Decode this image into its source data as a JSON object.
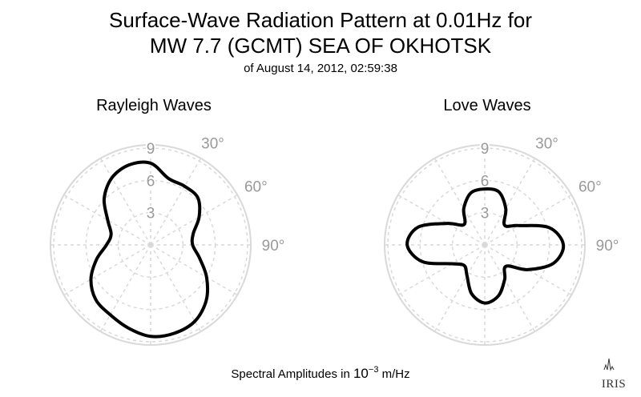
{
  "title_line1": "Surface-Wave Radiation Pattern at 0.01Hz for",
  "title_line2": "MW 7.7 (GCMT) SEA OF OKHOTSK",
  "subtitle": "of August 14, 2012, 02:59:38",
  "footer": {
    "prefix": "Spectral Amplitudes in ",
    "base": "10",
    "exponent": "−3",
    "unit": " m/Hz"
  },
  "logo_text": "IRIS",
  "colors": {
    "curve": "#000000",
    "grid": "#d9d9d9",
    "tick_text": "#9a9a9a"
  },
  "chart_data": [
    {
      "type": "polar-line",
      "title": "Rayleigh Waves",
      "theta_unit": "degrees (azimuth, clockwise from north)",
      "r_ticks": [
        3,
        6,
        9
      ],
      "r_tick_labels": [
        "3",
        "6",
        "9"
      ],
      "theta_ticks": [
        30,
        60,
        90
      ],
      "theta_tick_labels": [
        "30°",
        "60°",
        "90°"
      ],
      "rlim": [
        0,
        9.3
      ],
      "grid": true,
      "series": [
        {
          "theta": [
            0,
            15,
            30,
            45,
            60,
            75,
            90,
            105,
            120,
            135,
            150,
            165,
            180,
            195,
            210,
            225,
            240,
            255,
            270,
            285,
            300,
            315,
            330,
            345
          ],
          "r": [
            7.6,
            6.4,
            6.3,
            6.2,
            5.2,
            4.1,
            3.9,
            4.7,
            6.0,
            7.3,
            8.2,
            8.5,
            8.5,
            8.0,
            7.5,
            7.2,
            6.4,
            5.2,
            4.1,
            3.8,
            4.6,
            6.1,
            7.2,
            7.7
          ]
        }
      ]
    },
    {
      "type": "polar-line",
      "title": "Love Waves",
      "theta_unit": "degrees (azimuth, clockwise from north)",
      "r_ticks": [
        3,
        6,
        9
      ],
      "r_tick_labels": [
        "3",
        "6",
        "9"
      ],
      "theta_ticks": [
        30,
        60,
        90
      ],
      "theta_tick_labels": [
        "30°",
        "60°",
        "90°"
      ],
      "rlim": [
        0,
        9.3
      ],
      "grid": true,
      "series": [
        {
          "theta": [
            0,
            15,
            30,
            45,
            60,
            75,
            90,
            105,
            120,
            135,
            150,
            165,
            180,
            195,
            210,
            225,
            240,
            255,
            270,
            285,
            300,
            315,
            330,
            345
          ],
          "r": [
            5.2,
            5.1,
            3.9,
            2.6,
            3.6,
            6.2,
            7.3,
            6.6,
            4.6,
            2.8,
            3.7,
            4.9,
            5.4,
            4.7,
            3.3,
            2.7,
            3.5,
            6.0,
            7.2,
            6.4,
            4.0,
            2.7,
            3.9,
            5.0
          ]
        }
      ]
    }
  ]
}
